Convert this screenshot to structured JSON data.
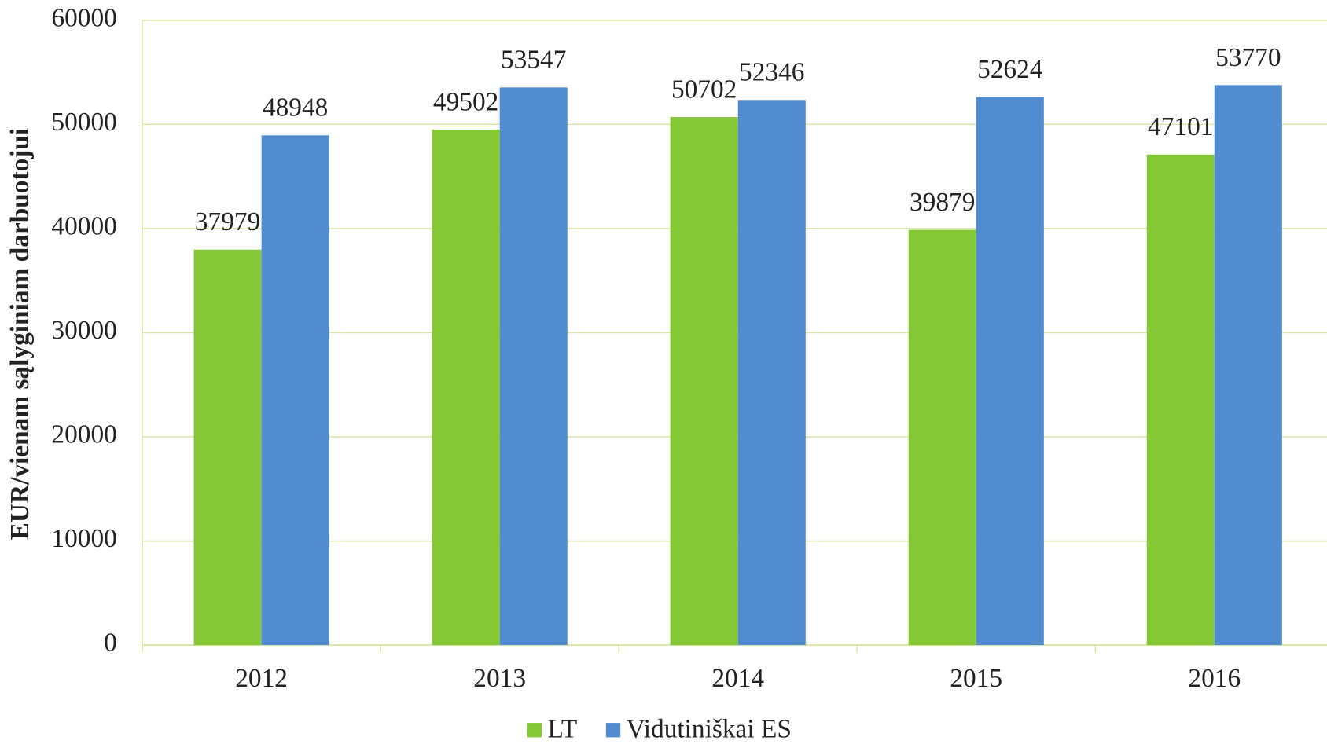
{
  "chart_data": {
    "type": "bar",
    "y_label": "EUR/vienam sąlyginiam darbuotojui",
    "categories": [
      "2012",
      "2013",
      "2014",
      "2015",
      "2016"
    ],
    "series": [
      {
        "name": "LT",
        "color": "#84c935",
        "values": [
          37979,
          49502,
          50702,
          39879,
          47101
        ]
      },
      {
        "name": "Vidutiniškai ES",
        "color": "#518bd0",
        "values": [
          48948,
          53547,
          52346,
          52624,
          53770
        ]
      }
    ],
    "ylim": [
      0,
      60000
    ],
    "yticks": [
      0,
      10000,
      20000,
      30000,
      40000,
      50000,
      60000
    ],
    "grid": true
  }
}
